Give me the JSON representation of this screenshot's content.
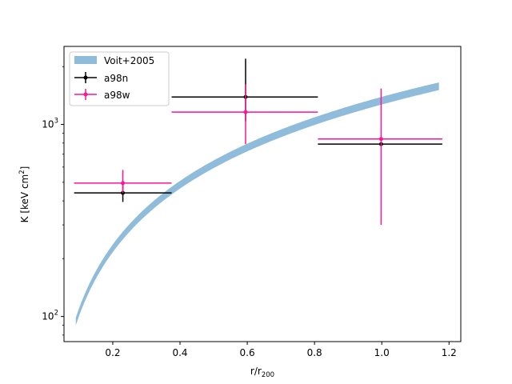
{
  "chart_data": {
    "type": "scatter",
    "title": "",
    "xlabel": "r/r",
    "xlabel_sub": "200",
    "ylabel": "K [keV cm",
    "ylabel_sup": "2",
    "ylabel_end": "]",
    "xlim": [
      0.055,
      1.235
    ],
    "ylim": [
      74,
      2550
    ],
    "yscale": "log",
    "grid": false,
    "legend_position": "top-left",
    "x_ticks": [
      {
        "value": 0.2,
        "label": "0.2"
      },
      {
        "value": 0.4,
        "label": "0.4"
      },
      {
        "value": 0.6,
        "label": "0.6"
      },
      {
        "value": 0.8,
        "label": "0.8"
      },
      {
        "value": 1.0,
        "label": "1.0"
      },
      {
        "value": 1.2,
        "label": "1.2"
      }
    ],
    "y_ticks": [
      {
        "value": 100,
        "base": "10",
        "exp": "2"
      },
      {
        "value": 1000,
        "base": "10",
        "exp": "3"
      }
    ],
    "band": {
      "name": "Voit+2005",
      "color": "#8fbcdb",
      "x_range": [
        0.09,
        1.17
      ],
      "center_at_r1": 1330,
      "slope": 1.1,
      "half_width_dex": 0.02
    },
    "series": [
      {
        "name": "a98n",
        "color": "#000000",
        "points": [
          {
            "x": 0.23,
            "y": 440,
            "xerr": [
              0.085,
              0.375
            ],
            "yerr": [
              395,
              490
            ]
          },
          {
            "x": 0.595,
            "y": 1390,
            "xerr": [
              0.375,
              0.81
            ],
            "yerr": [
              1040,
              2200
            ]
          },
          {
            "x": 0.998,
            "y": 790,
            "xerr": [
              0.81,
              1.18
            ],
            "yerr": [
              780,
              800
            ]
          }
        ]
      },
      {
        "name": "a98w",
        "color": "#ff1493",
        "points": [
          {
            "x": 0.23,
            "y": 495,
            "xerr": [
              0.085,
              0.375
            ],
            "yerr": [
              440,
              580
            ]
          },
          {
            "x": 0.595,
            "y": 1160,
            "xerr": [
              0.375,
              0.81
            ],
            "yerr": [
              790,
              1620
            ]
          },
          {
            "x": 0.998,
            "y": 840,
            "xerr": [
              0.81,
              1.18
            ],
            "yerr": [
              300,
              1540
            ]
          }
        ]
      }
    ]
  }
}
